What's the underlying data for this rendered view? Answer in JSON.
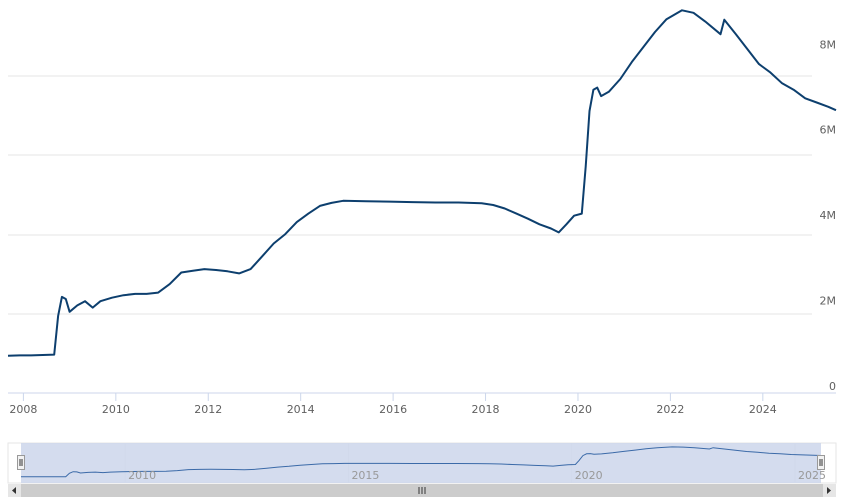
{
  "chart_data": {
    "type": "line",
    "title": "",
    "xlabel": "",
    "ylabel": "",
    "x_start": "2007-09",
    "x_end": "2025-08",
    "ylim": [
      0,
      9200000
    ],
    "y_ticks": [
      0,
      2000000,
      4000000,
      6000000,
      8000000
    ],
    "y_tick_labels": [
      "0",
      "2M",
      "4M",
      "6M",
      "8M"
    ],
    "x_ticks": [
      2008,
      2010,
      2012,
      2014,
      2016,
      2018,
      2020,
      2022,
      2024
    ],
    "x_tick_labels": [
      "2008",
      "2010",
      "2012",
      "2014",
      "2016",
      "2018",
      "2020",
      "2022",
      "2024"
    ],
    "grid": true,
    "line_color": "#0d3f6e",
    "series": [
      {
        "points": [
          [
            "2007-09",
            870000
          ],
          [
            "2007-12",
            880000
          ],
          [
            "2008-03",
            880000
          ],
          [
            "2008-06",
            890000
          ],
          [
            "2008-09",
            900000
          ],
          [
            "2008-10",
            1800000
          ],
          [
            "2008-11",
            2250000
          ],
          [
            "2008-12",
            2200000
          ],
          [
            "2009-01",
            1900000
          ],
          [
            "2009-03",
            2050000
          ],
          [
            "2009-05",
            2150000
          ],
          [
            "2009-07",
            2000000
          ],
          [
            "2009-09",
            2150000
          ],
          [
            "2009-12",
            2230000
          ],
          [
            "2010-03",
            2290000
          ],
          [
            "2010-06",
            2320000
          ],
          [
            "2010-09",
            2320000
          ],
          [
            "2010-12",
            2350000
          ],
          [
            "2011-03",
            2550000
          ],
          [
            "2011-06",
            2820000
          ],
          [
            "2011-09",
            2860000
          ],
          [
            "2011-12",
            2900000
          ],
          [
            "2012-03",
            2880000
          ],
          [
            "2012-06",
            2850000
          ],
          [
            "2012-09",
            2800000
          ],
          [
            "2012-12",
            2900000
          ],
          [
            "2013-03",
            3200000
          ],
          [
            "2013-06",
            3500000
          ],
          [
            "2013-09",
            3720000
          ],
          [
            "2013-12",
            4000000
          ],
          [
            "2014-03",
            4200000
          ],
          [
            "2014-06",
            4380000
          ],
          [
            "2014-09",
            4450000
          ],
          [
            "2014-12",
            4500000
          ],
          [
            "2015-06",
            4490000
          ],
          [
            "2015-12",
            4480000
          ],
          [
            "2016-06",
            4470000
          ],
          [
            "2016-12",
            4460000
          ],
          [
            "2017-06",
            4460000
          ],
          [
            "2017-12",
            4440000
          ],
          [
            "2018-03",
            4400000
          ],
          [
            "2018-06",
            4320000
          ],
          [
            "2018-09",
            4200000
          ],
          [
            "2018-12",
            4080000
          ],
          [
            "2019-03",
            3950000
          ],
          [
            "2019-06",
            3850000
          ],
          [
            "2019-08",
            3760000
          ],
          [
            "2019-10",
            3950000
          ],
          [
            "2019-12",
            4150000
          ],
          [
            "2020-02",
            4200000
          ],
          [
            "2020-03",
            5300000
          ],
          [
            "2020-04",
            6600000
          ],
          [
            "2020-05",
            7100000
          ],
          [
            "2020-06",
            7150000
          ],
          [
            "2020-07",
            6950000
          ],
          [
            "2020-09",
            7050000
          ],
          [
            "2020-12",
            7350000
          ],
          [
            "2021-03",
            7750000
          ],
          [
            "2021-06",
            8100000
          ],
          [
            "2021-09",
            8450000
          ],
          [
            "2021-12",
            8750000
          ],
          [
            "2022-04",
            8960000
          ],
          [
            "2022-07",
            8900000
          ],
          [
            "2022-10",
            8700000
          ],
          [
            "2023-02",
            8400000
          ],
          [
            "2023-03",
            8740000
          ],
          [
            "2023-06",
            8400000
          ],
          [
            "2023-09",
            8050000
          ],
          [
            "2023-12",
            7700000
          ],
          [
            "2024-03",
            7500000
          ],
          [
            "2024-06",
            7250000
          ],
          [
            "2024-09",
            7100000
          ],
          [
            "2024-12",
            6900000
          ],
          [
            "2025-03",
            6800000
          ],
          [
            "2025-06",
            6700000
          ],
          [
            "2025-08",
            6620000
          ]
        ]
      }
    ],
    "navigator": {
      "tick_labels": [
        "2010",
        "2015",
        "2020",
        "2025"
      ],
      "tick_years": [
        2010,
        2015,
        2020,
        2025
      ],
      "selection": "full range",
      "scrollbar_handle_icon": "grip-lines-icon",
      "left_arrow_icon": "arrow-left-icon",
      "right_arrow_icon": "arrow-right-icon"
    }
  }
}
